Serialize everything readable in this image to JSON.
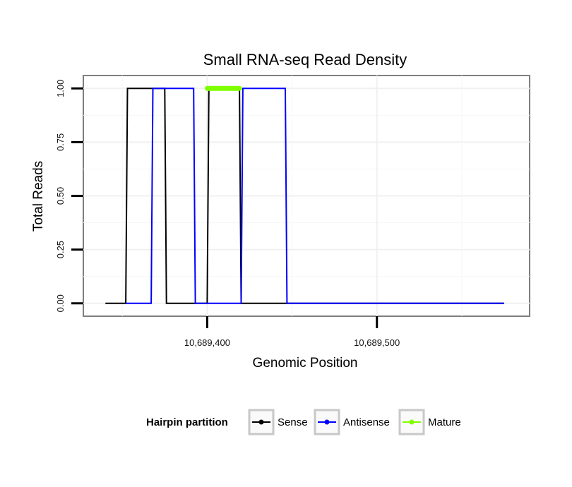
{
  "chart_data": {
    "type": "line",
    "title": "Small RNA-seq Read Density",
    "xlabel": "Genomic Position",
    "ylabel": "Total Reads",
    "xlim": [
      10689327,
      10689590
    ],
    "ylim": [
      -0.06,
      1.06
    ],
    "x_ticks": [
      10689400,
      10689500
    ],
    "x_tick_labels": [
      "10,689,400",
      "10,689,500"
    ],
    "y_ticks": [
      0,
      0.25,
      0.5,
      0.75,
      1.0
    ],
    "y_tick_labels": [
      "0.00",
      "0.25",
      "0.50",
      "0.75",
      "1.00"
    ],
    "grid": true,
    "legend": {
      "title": "Hairpin partition",
      "position": "bottom"
    },
    "series": [
      {
        "name": "Sense",
        "color": "#000000",
        "x": [
          10689340,
          10689352,
          10689353,
          10689375,
          10689376,
          10689400,
          10689401,
          10689419,
          10689420,
          10689575
        ],
        "y": [
          0,
          0,
          1,
          1,
          0,
          0,
          1,
          1,
          0,
          0
        ]
      },
      {
        "name": "Antisense",
        "color": "#0000ff",
        "x": [
          10689352,
          10689367,
          10689368,
          10689392,
          10689393,
          10689420,
          10689421,
          10689446,
          10689447,
          10689575
        ],
        "y": [
          0,
          0,
          1,
          1,
          0,
          0,
          1,
          1,
          0,
          0
        ]
      },
      {
        "name": "Mature",
        "color": "#7fff00",
        "x": [
          10689400,
          10689419
        ],
        "y": [
          1,
          1
        ]
      }
    ]
  }
}
